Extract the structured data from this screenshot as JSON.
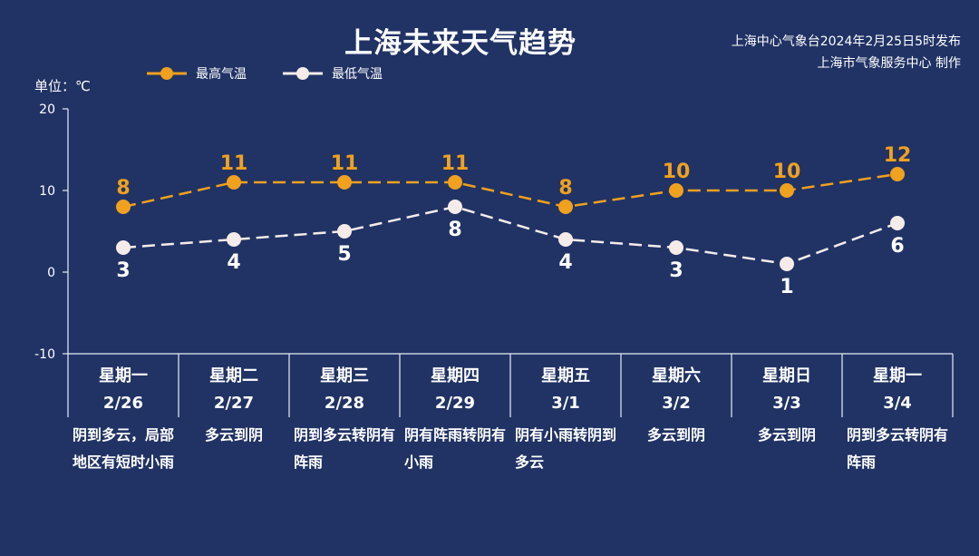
{
  "title": "上海未来天气趋势",
  "issuer": [
    "上海中心气象台2024年2月25日5时发布",
    "上海市气象服务中心 制作"
  ],
  "unit_label": "单位：℃",
  "colors": {
    "background": "#213365",
    "high": "#f0a11e",
    "low": "#f5ecea",
    "axis": "#e8eef8"
  },
  "chart_data": {
    "type": "line",
    "title": "上海未来天气趋势",
    "ylabel": "单位：℃",
    "ylim": [
      -10,
      20
    ],
    "yticks": [
      "20",
      "10",
      "0",
      "-10"
    ],
    "legend_position": "top-left",
    "grid": false,
    "categories": [
      "星期一 2/26",
      "星期二 2/27",
      "星期三 2/28",
      "星期四 2/29",
      "星期五 3/1",
      "星期六 3/2",
      "星期日 3/3",
      "星期一 3/4"
    ],
    "series": [
      {
        "name": "最高气温",
        "values": [
          8,
          11,
          11,
          11,
          8,
          10,
          10,
          12
        ],
        "labels": [
          "8",
          "11",
          "11",
          "11",
          "8",
          "10",
          "10",
          "12"
        ]
      },
      {
        "name": "最低气温",
        "values": [
          3,
          4,
          5,
          8,
          4,
          3,
          1,
          6
        ],
        "labels": [
          "3",
          "4",
          "5",
          "8",
          "4",
          "3",
          "1",
          "6"
        ]
      }
    ]
  },
  "days": [
    {
      "weekday": "星期一",
      "date": "2/26",
      "weather": "阴到多云，局部地区有短时小雨"
    },
    {
      "weekday": "星期二",
      "date": "2/27",
      "weather": "多云到阴"
    },
    {
      "weekday": "星期三",
      "date": "2/28",
      "weather": "阴到多云转阴有阵雨"
    },
    {
      "weekday": "星期四",
      "date": "2/29",
      "weather": "阴有阵雨转阴有小雨"
    },
    {
      "weekday": "星期五",
      "date": "3/1",
      "weather": "阴有小雨转阴到多云"
    },
    {
      "weekday": "星期六",
      "date": "3/2",
      "weather": "多云到阴"
    },
    {
      "weekday": "星期日",
      "date": "3/3",
      "weather": "多云到阴"
    },
    {
      "weekday": "星期一",
      "date": "3/4",
      "weather": "阴到多云转阴有阵雨"
    }
  ]
}
